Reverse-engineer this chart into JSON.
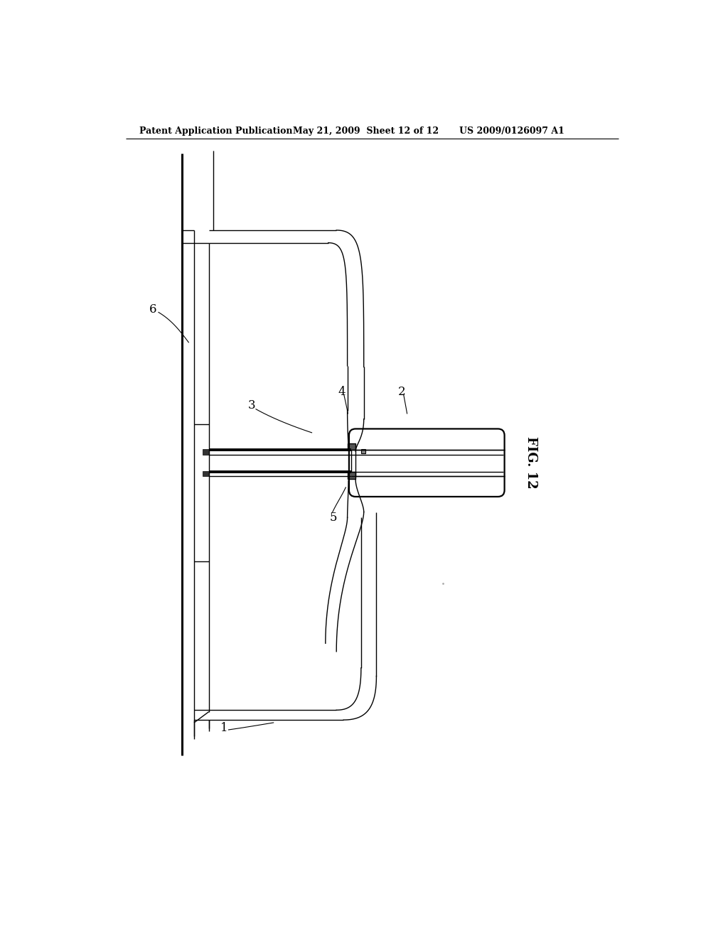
{
  "title_left": "Patent Application Publication",
  "title_mid": "May 21, 2009  Sheet 12 of 12",
  "title_right": "US 2009/0126097 A1",
  "fig_label": "FIG. 12",
  "background": "#ffffff",
  "line_color": "#000000",
  "lw_thin": 1.0,
  "lw_thick": 2.8,
  "lw_med": 1.6
}
